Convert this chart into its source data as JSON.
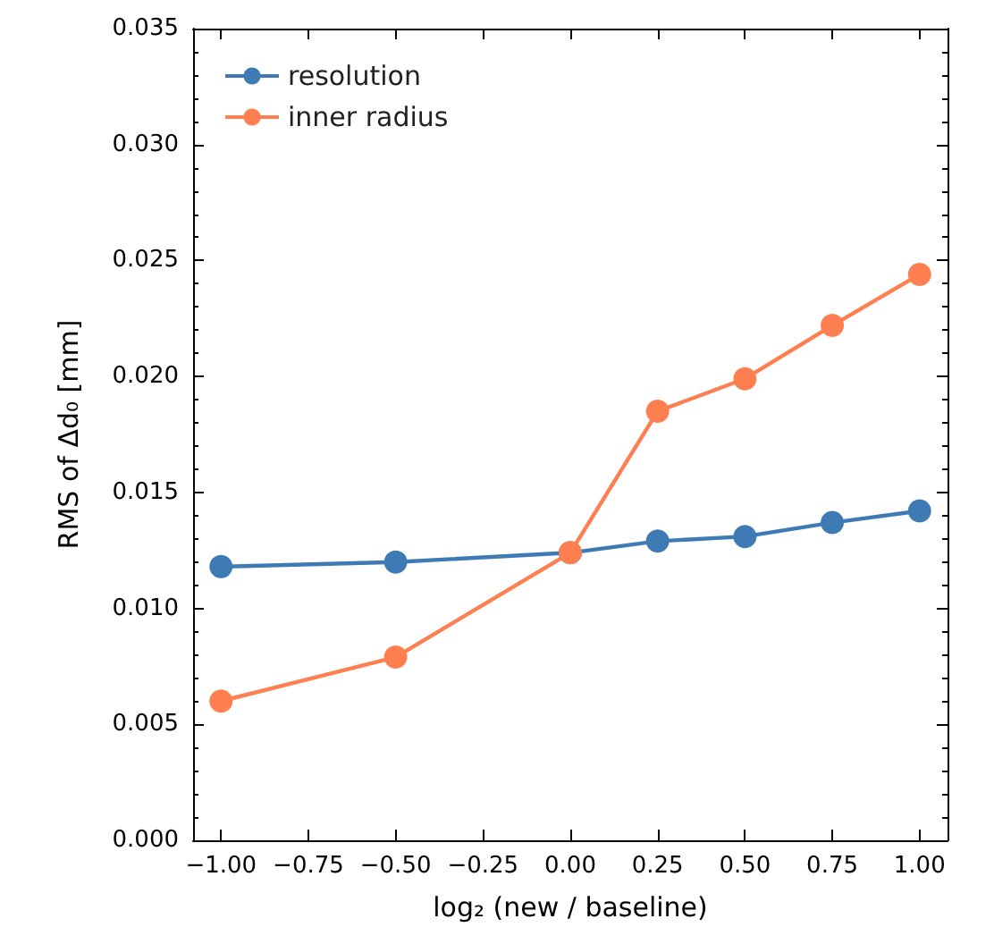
{
  "chart_data": {
    "type": "line",
    "xlabel": "log₂ (new / baseline)",
    "ylabel": "RMS of Δd₀ [mm]",
    "x": [
      -1,
      -0.5,
      0,
      0.25,
      0.5,
      0.75,
      1
    ],
    "series": [
      {
        "name": "resolution",
        "color": "#3e7bb5",
        "values": [
          0.0118,
          0.012,
          0.0124,
          0.0129,
          0.0131,
          0.0137,
          0.0142
        ]
      },
      {
        "name": "inner radius",
        "color": "#ff7f50",
        "values": [
          0.006,
          0.0079,
          0.0124,
          0.0185,
          0.0199,
          0.0222,
          0.0244
        ]
      }
    ],
    "xlim": [
      -1.08,
      1.08
    ],
    "xticks": [
      {
        "value": -1,
        "label": "−1.00"
      },
      {
        "value": -0.75,
        "label": "−0.75"
      },
      {
        "value": -0.5,
        "label": "−0.50"
      },
      {
        "value": -0.25,
        "label": "−0.25"
      },
      {
        "value": 0,
        "label": "0.00"
      },
      {
        "value": 0.25,
        "label": "0.25"
      },
      {
        "value": 0.5,
        "label": "0.50"
      },
      {
        "value": 0.75,
        "label": "0.75"
      },
      {
        "value": 1,
        "label": "1.00"
      }
    ],
    "ylim": [
      0,
      0.035
    ],
    "yticks": [
      {
        "value": 0,
        "label": "0.000"
      },
      {
        "value": 0.005,
        "label": "0.005"
      },
      {
        "value": 0.01,
        "label": "0.010"
      },
      {
        "value": 0.015,
        "label": "0.015"
      },
      {
        "value": 0.02,
        "label": "0.020"
      },
      {
        "value": 0.025,
        "label": "0.025"
      },
      {
        "value": 0.03,
        "label": "0.030"
      },
      {
        "value": 0.035,
        "label": "0.035"
      }
    ],
    "grid": false,
    "legend": "top left",
    "marker": "circle",
    "line_style": "solid"
  }
}
